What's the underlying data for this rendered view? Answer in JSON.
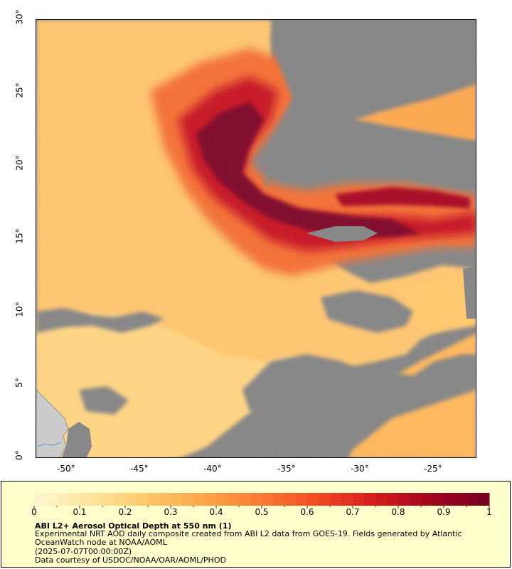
{
  "map": {
    "y_ticks": [
      "0°",
      "5°",
      "10°",
      "15°",
      "20°",
      "25°",
      "30°"
    ],
    "x_ticks": [
      "-50°",
      "-45°",
      "-40°",
      "-35°",
      "-30°",
      "-25°"
    ],
    "colors": {
      "no_data": "#808080",
      "land": "#c8c8c8",
      "scale": [
        "#fff5cc",
        "#ffe39a",
        "#fec566",
        "#fda448",
        "#fc7a34",
        "#f04a23",
        "#d61d1d",
        "#a5061e",
        "#7a0022"
      ]
    }
  },
  "colorbar": {
    "labels": [
      "0",
      "0.1",
      "0.2",
      "0.3",
      "0.4",
      "0.5",
      "0.6",
      "0.7",
      "0.8",
      "0.9",
      "1"
    ]
  },
  "legend": {
    "title": "ABI L2+ Aerosol Optical Depth at 550 nm (1)",
    "description": "Experimental NRT AOD daily composite created from ABI L2 data from GOES-19. Fields generated by Atlantic OceanWatch node at NOAA/AOML",
    "time": "(2025-07-07T00:00:00Z)",
    "credit": "Data courtesy of USDOC/NOAA/OAR/AOML/PHOD"
  }
}
